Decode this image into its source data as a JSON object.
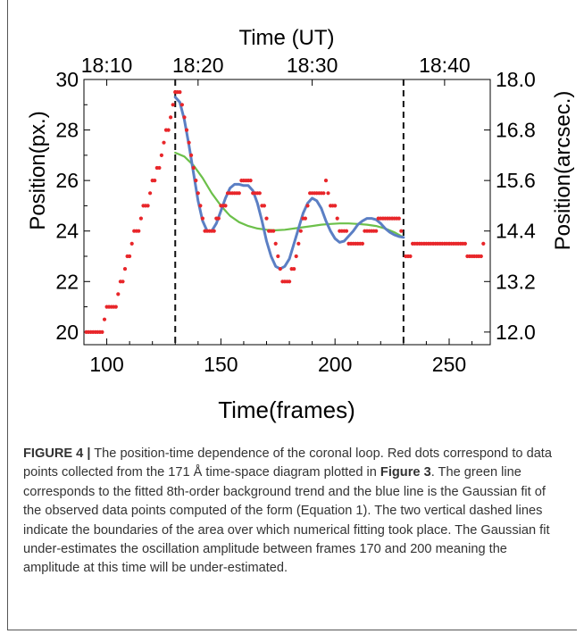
{
  "chart_data": {
    "type": "scatter",
    "xlabel": "Time(frames)",
    "ylabel": "Position(px.)",
    "x2label": "Time (UT)",
    "y2label": "Position(arcsec.)",
    "xlim": [
      90,
      268
    ],
    "ylim": [
      19.5,
      30
    ],
    "xticks": [
      100,
      150,
      200,
      250
    ],
    "yticks": [
      20,
      22,
      24,
      26,
      28,
      30
    ],
    "top_ticks": [
      {
        "label": "18:10",
        "frame": 100
      },
      {
        "label": "18:20",
        "frame": 140
      },
      {
        "label": "18:30",
        "frame": 190
      },
      {
        "label": "18:40",
        "frame": 248
      }
    ],
    "right_ticks": [
      {
        "label": "12.0",
        "value": 20
      },
      {
        "label": "13.2",
        "value": 22
      },
      {
        "label": "14.4",
        "value": 24
      },
      {
        "label": "15.6",
        "value": 26
      },
      {
        "label": "16.8",
        "value": 28
      },
      {
        "label": "18.0",
        "value": 30
      }
    ],
    "vlines": [
      130,
      230
    ],
    "colors": {
      "points": "#e8262a",
      "trend": "#6cc04a",
      "fit": "#5b7fc4",
      "dashed": "#111111"
    },
    "series": [
      {
        "name": "data points",
        "points": [
          [
            91,
            20
          ],
          [
            92,
            20
          ],
          [
            93,
            20
          ],
          [
            94,
            20
          ],
          [
            95,
            20
          ],
          [
            96,
            20
          ],
          [
            97,
            20
          ],
          [
            98,
            20
          ],
          [
            99,
            20.5
          ],
          [
            100,
            21
          ],
          [
            101,
            21
          ],
          [
            102,
            21
          ],
          [
            103,
            21
          ],
          [
            104,
            21
          ],
          [
            105,
            21.5
          ],
          [
            106,
            22
          ],
          [
            107,
            22
          ],
          [
            108,
            22.5
          ],
          [
            109,
            23
          ],
          [
            110,
            23
          ],
          [
            111,
            23.5
          ],
          [
            112,
            24
          ],
          [
            113,
            24
          ],
          [
            114,
            24
          ],
          [
            115,
            24.5
          ],
          [
            116,
            25
          ],
          [
            117,
            25
          ],
          [
            118,
            25
          ],
          [
            119,
            25.5
          ],
          [
            120,
            26
          ],
          [
            121,
            26
          ],
          [
            122,
            26.5
          ],
          [
            123,
            26.5
          ],
          [
            124,
            27
          ],
          [
            125,
            27.5
          ],
          [
            126,
            28
          ],
          [
            127,
            28
          ],
          [
            128,
            28.5
          ],
          [
            129,
            29
          ],
          [
            130,
            29.5
          ],
          [
            131,
            29.5
          ],
          [
            132,
            29.5
          ],
          [
            133,
            29
          ],
          [
            134,
            28.5
          ],
          [
            135,
            28
          ],
          [
            136,
            27.5
          ],
          [
            137,
            27
          ],
          [
            138,
            26.5
          ],
          [
            139,
            26
          ],
          [
            140,
            25.5
          ],
          [
            141,
            25
          ],
          [
            142,
            24.5
          ],
          [
            143,
            24
          ],
          [
            144,
            24
          ],
          [
            145,
            24
          ],
          [
            146,
            24
          ],
          [
            147,
            24
          ],
          [
            148,
            24.5
          ],
          [
            149,
            24.5
          ],
          [
            150,
            25
          ],
          [
            151,
            25
          ],
          [
            152,
            25
          ],
          [
            153,
            25.5
          ],
          [
            154,
            25.5
          ],
          [
            155,
            25.5
          ],
          [
            156,
            25.5
          ],
          [
            157,
            25.5
          ],
          [
            158,
            25.5
          ],
          [
            159,
            26
          ],
          [
            160,
            26
          ],
          [
            161,
            26
          ],
          [
            162,
            26
          ],
          [
            163,
            26
          ],
          [
            164,
            25.5
          ],
          [
            165,
            25.5
          ],
          [
            166,
            25.5
          ],
          [
            167,
            25.5
          ],
          [
            168,
            25
          ],
          [
            169,
            25
          ],
          [
            170,
            24.5
          ],
          [
            171,
            24
          ],
          [
            172,
            24
          ],
          [
            173,
            24
          ],
          [
            174,
            23.5
          ],
          [
            175,
            23
          ],
          [
            176,
            22.5
          ],
          [
            177,
            22
          ],
          [
            178,
            22
          ],
          [
            179,
            22
          ],
          [
            180,
            22
          ],
          [
            181,
            22.5
          ],
          [
            182,
            22.5
          ],
          [
            183,
            23
          ],
          [
            184,
            23.5
          ],
          [
            185,
            24
          ],
          [
            186,
            24.5
          ],
          [
            187,
            24.5
          ],
          [
            188,
            25
          ],
          [
            189,
            25.5
          ],
          [
            190,
            25.5
          ],
          [
            191,
            25.5
          ],
          [
            192,
            25.5
          ],
          [
            193,
            25.5
          ],
          [
            194,
            25.5
          ],
          [
            195,
            25.5
          ],
          [
            196,
            26
          ],
          [
            197,
            25.5
          ],
          [
            198,
            25
          ],
          [
            199,
            25
          ],
          [
            200,
            25
          ],
          [
            201,
            24.5
          ],
          [
            202,
            24
          ],
          [
            203,
            24
          ],
          [
            204,
            24
          ],
          [
            205,
            24
          ],
          [
            206,
            23.5
          ],
          [
            207,
            23.5
          ],
          [
            208,
            23.5
          ],
          [
            209,
            23.5
          ],
          [
            210,
            23.5
          ],
          [
            211,
            23.5
          ],
          [
            212,
            23.5
          ],
          [
            213,
            24
          ],
          [
            214,
            24
          ],
          [
            215,
            24
          ],
          [
            216,
            24
          ],
          [
            217,
            24
          ],
          [
            218,
            24
          ],
          [
            219,
            24.5
          ],
          [
            220,
            24.5
          ],
          [
            221,
            24.5
          ],
          [
            222,
            24.5
          ],
          [
            223,
            24.5
          ],
          [
            224,
            24.5
          ],
          [
            225,
            24.5
          ],
          [
            226,
            24.5
          ],
          [
            227,
            24.5
          ],
          [
            228,
            24.5
          ],
          [
            229,
            24
          ],
          [
            231,
            23
          ],
          [
            232,
            23
          ],
          [
            233,
            23
          ],
          [
            234,
            23.5
          ],
          [
            235,
            23.5
          ],
          [
            236,
            23.5
          ],
          [
            237,
            23.5
          ],
          [
            238,
            23.5
          ],
          [
            239,
            23.5
          ],
          [
            240,
            23.5
          ],
          [
            241,
            23.5
          ],
          [
            242,
            23.5
          ],
          [
            243,
            23.5
          ],
          [
            244,
            23.5
          ],
          [
            245,
            23.5
          ],
          [
            246,
            23.5
          ],
          [
            247,
            23.5
          ],
          [
            248,
            23.5
          ],
          [
            249,
            23.5
          ],
          [
            250,
            23.5
          ],
          [
            251,
            23.5
          ],
          [
            252,
            23.5
          ],
          [
            253,
            23.5
          ],
          [
            254,
            23.5
          ],
          [
            255,
            23.5
          ],
          [
            256,
            23.5
          ],
          [
            257,
            23.5
          ],
          [
            258,
            23
          ],
          [
            259,
            23
          ],
          [
            260,
            23
          ],
          [
            261,
            23
          ],
          [
            262,
            23
          ],
          [
            263,
            23
          ],
          [
            264,
            23
          ],
          [
            265,
            23.5
          ]
        ]
      },
      {
        "name": "background trend",
        "x": [
          130,
          134,
          138,
          142,
          146,
          150,
          154,
          158,
          162,
          166,
          170,
          174,
          178,
          182,
          186,
          190,
          194,
          198,
          202,
          206,
          210,
          214,
          218,
          222,
          226,
          230
        ],
        "y": [
          27.1,
          26.95,
          26.6,
          26.1,
          25.5,
          25.0,
          24.6,
          24.35,
          24.2,
          24.1,
          24.05,
          24.03,
          24.05,
          24.1,
          24.15,
          24.2,
          24.25,
          24.28,
          24.3,
          24.3,
          24.28,
          24.25,
          24.2,
          24.1,
          23.95,
          23.75
        ]
      },
      {
        "name": "Gaussian fit",
        "x": [
          130,
          132,
          134,
          136,
          138,
          140,
          142,
          144,
          146,
          148,
          150,
          152,
          154,
          156,
          158,
          160,
          162,
          164,
          166,
          168,
          170,
          172,
          174,
          176,
          178,
          180,
          182,
          184,
          186,
          188,
          190,
          192,
          194,
          196,
          198,
          200,
          202,
          204,
          206,
          208,
          210,
          212,
          214,
          216,
          218,
          220,
          222,
          224,
          226,
          228,
          230
        ],
        "y": [
          29.3,
          29.1,
          28.4,
          27.4,
          26.3,
          25.2,
          24.4,
          24.0,
          24.0,
          24.3,
          24.8,
          25.3,
          25.7,
          25.85,
          25.85,
          25.8,
          25.8,
          25.6,
          25.1,
          24.4,
          23.6,
          23.0,
          22.6,
          22.5,
          22.6,
          22.9,
          23.5,
          24.1,
          24.7,
          25.1,
          25.3,
          25.2,
          24.9,
          24.4,
          24.0,
          23.7,
          23.55,
          23.6,
          23.8,
          24.0,
          24.25,
          24.4,
          24.5,
          24.5,
          24.45,
          24.3,
          24.1,
          23.95,
          23.85,
          23.78,
          23.75
        ]
      }
    ]
  },
  "caption": {
    "label": "FIGURE 4 |",
    "p1": " The position-time dependence of the coronal loop. Red dots correspond to data points collected from the 171 Å time-space diagram plotted in ",
    "ref": "Figure 3",
    "p2": ". The green line corresponds to the fitted 8th-order background trend and the blue line is the Gaussian fit of the observed data points computed of the form (Equation 1). The two vertical dashed lines indicate the boundaries of the area over which numerical fitting took place. The Gaussian fit under-estimates the oscillation amplitude between frames 170 and 200 meaning the amplitude at this time will be under-estimated."
  }
}
